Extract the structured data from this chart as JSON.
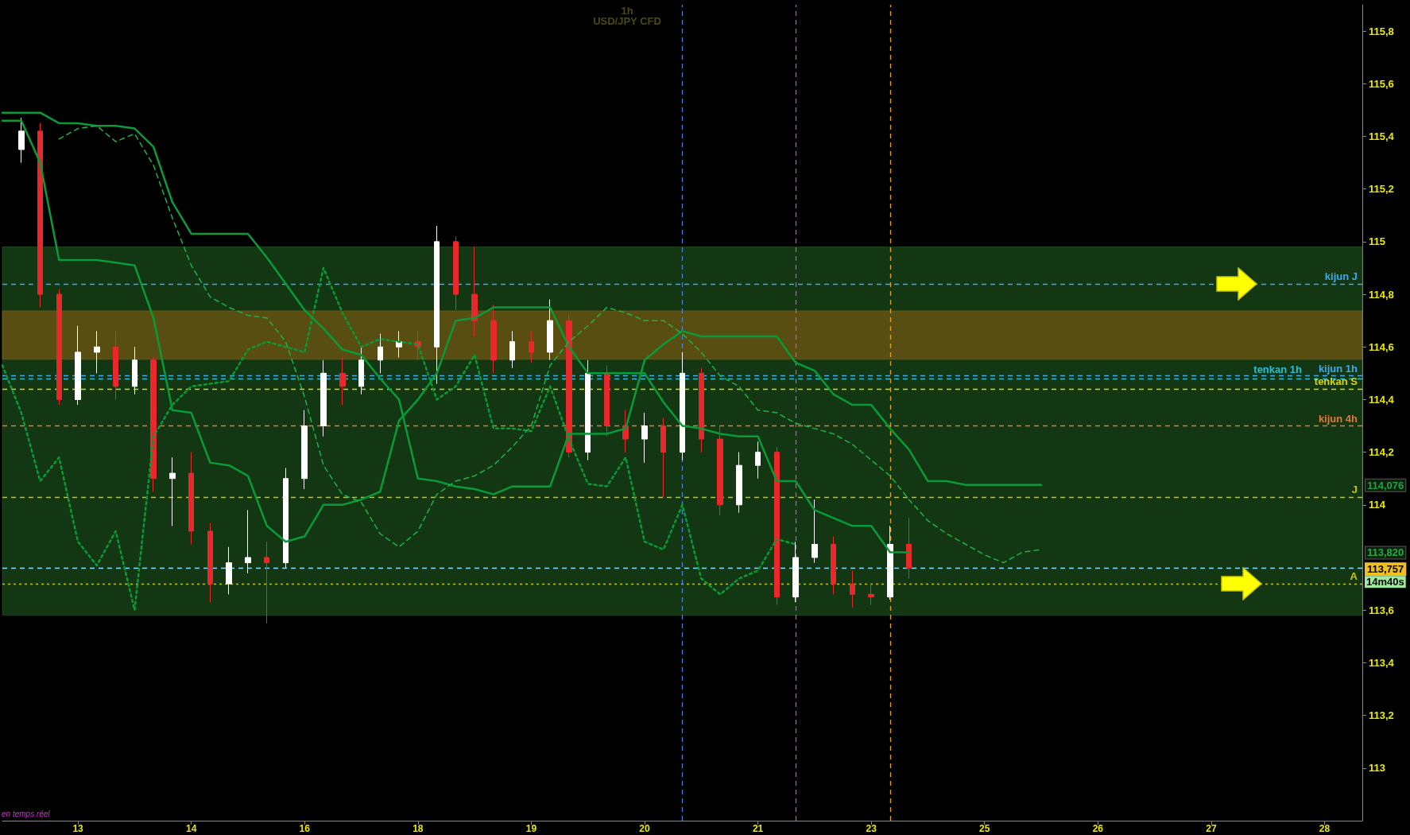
{
  "chart_data": {
    "type": "candlestick",
    "title": "1h",
    "subtitle": "USD/JPY CFD",
    "categories": [
      null,
      null,
      null,
      null,
      "13",
      null,
      null,
      null,
      null,
      null,
      "14",
      null,
      null,
      null,
      null,
      null,
      "16",
      null,
      null,
      null,
      null,
      null,
      "18",
      null,
      null,
      null,
      null,
      null,
      "19",
      null,
      null,
      null,
      null,
      null,
      "20",
      null,
      null,
      null,
      null,
      null,
      "21",
      null,
      null,
      null,
      null,
      null,
      "23",
      null,
      null,
      null,
      null,
      null,
      "25",
      null,
      null,
      null,
      null,
      null,
      "26",
      null,
      null,
      null,
      null,
      null,
      "27",
      null,
      null,
      null,
      null,
      null,
      "28",
      null,
      null
    ],
    "ylim": [
      112.8,
      115.9
    ],
    "yticks": [
      113,
      {
        "value": 113.2,
        "label": "113,2"
      },
      {
        "value": 113.4,
        "label": "113,4"
      },
      {
        "value": 113.6,
        "label": "113,6"
      },
      114,
      {
        "value": 114.2,
        "label": "114,2"
      },
      {
        "value": 114.4,
        "label": "114,4"
      },
      {
        "value": 114.6,
        "label": "114,6"
      },
      {
        "value": 114.8,
        "label": "114,8"
      },
      115,
      {
        "value": 115.2,
        "label": "115,2"
      },
      {
        "value": 115.4,
        "label": "115,4"
      },
      {
        "value": 115.6,
        "label": "115,6"
      },
      {
        "value": 115.8,
        "label": "115,8"
      }
    ],
    "grid": false,
    "series": [
      {
        "colors": [
          null,
          "#ffffff",
          "#e8282b",
          "#e8282b",
          "#ffffff",
          "#ffffff",
          "#e8282b",
          "#ffffff",
          "#e8282b",
          "#ffffff",
          "#e8282b",
          "#e8282b",
          "#ffffff",
          "#ffffff",
          "#e8282b",
          "#ffffff",
          "#ffffff",
          "#ffffff",
          "#e8282b",
          "#ffffff",
          "#ffffff",
          "#ffffff",
          "#e8282b",
          "#ffffff",
          "#e8282b",
          "#e8282b",
          "#e8282b",
          "#ffffff",
          "#e8282b",
          "#ffffff",
          "#e8282b",
          "#ffffff",
          "#e8282b",
          "#e8282b",
          "#ffffff",
          "#e8282b",
          "#ffffff",
          "#e8282b",
          "#e8282b",
          "#ffffff",
          "#ffffff",
          "#e8282b",
          "#ffffff",
          "#ffffff",
          "#e8282b",
          "#e8282b",
          "#e8282b",
          "#ffffff",
          "#e8282b",
          null,
          null,
          null,
          null,
          null,
          null,
          null,
          null,
          null,
          null,
          null,
          null,
          null,
          null,
          null,
          null,
          null,
          null,
          null,
          null,
          null,
          null,
          null,
          null
        ],
        "ohlc": [
          null,
          [
            115.35,
            115.47,
            115.3,
            115.42
          ],
          [
            115.42,
            115.45,
            114.75,
            114.8
          ],
          [
            114.8,
            114.82,
            114.38,
            114.4
          ],
          [
            114.4,
            114.68,
            114.38,
            114.58
          ],
          [
            114.58,
            114.66,
            114.5,
            114.6
          ],
          [
            114.6,
            114.66,
            114.4,
            114.45
          ],
          [
            114.45,
            114.6,
            114.42,
            114.55
          ],
          [
            114.55,
            114.56,
            114.05,
            114.1
          ],
          [
            114.1,
            114.18,
            113.92,
            114.12
          ],
          [
            114.12,
            114.2,
            113.85,
            113.9
          ],
          [
            113.9,
            113.93,
            113.63,
            113.7
          ],
          [
            113.7,
            113.84,
            113.66,
            113.78
          ],
          [
            113.78,
            113.98,
            113.74,
            113.8
          ],
          [
            113.8,
            113.86,
            113.55,
            113.78
          ],
          [
            113.78,
            114.14,
            113.76,
            114.1
          ],
          [
            114.1,
            114.36,
            114.06,
            114.3
          ],
          [
            114.3,
            114.55,
            114.26,
            114.5
          ],
          [
            114.5,
            114.56,
            114.38,
            114.45
          ],
          [
            114.45,
            114.6,
            114.42,
            114.55
          ],
          [
            114.55,
            114.65,
            114.5,
            114.6
          ],
          [
            114.6,
            114.66,
            114.56,
            114.62
          ],
          [
            114.62,
            114.66,
            114.55,
            114.6
          ],
          [
            114.6,
            115.06,
            114.46,
            115.0
          ],
          [
            115.0,
            115.02,
            114.74,
            114.8
          ],
          [
            114.8,
            114.98,
            114.64,
            114.7
          ],
          [
            114.7,
            114.76,
            114.5,
            114.55
          ],
          [
            114.55,
            114.66,
            114.52,
            114.62
          ],
          [
            114.62,
            114.66,
            114.54,
            114.58
          ],
          [
            114.58,
            114.78,
            114.55,
            114.7
          ],
          [
            114.7,
            114.72,
            114.18,
            114.2
          ],
          [
            114.2,
            114.55,
            114.17,
            114.5
          ],
          [
            114.5,
            114.53,
            114.26,
            114.3
          ],
          [
            114.3,
            114.36,
            114.2,
            114.25
          ],
          [
            114.25,
            114.35,
            114.16,
            114.3
          ],
          [
            114.3,
            114.33,
            114.03,
            114.2
          ],
          [
            114.2,
            114.58,
            114.17,
            114.5
          ],
          [
            114.5,
            114.52,
            114.2,
            114.25
          ],
          [
            114.25,
            114.3,
            113.96,
            114.0
          ],
          [
            114.0,
            114.2,
            113.97,
            114.15
          ],
          [
            114.15,
            114.24,
            114.1,
            114.2
          ],
          [
            114.2,
            114.22,
            113.62,
            113.65
          ],
          [
            113.65,
            113.86,
            113.63,
            113.8
          ],
          [
            113.8,
            114.02,
            113.78,
            113.85
          ],
          [
            113.85,
            113.88,
            113.66,
            113.7
          ],
          [
            113.7,
            113.75,
            113.61,
            113.66
          ],
          [
            113.66,
            113.7,
            113.62,
            113.65
          ],
          [
            113.65,
            113.92,
            113.64,
            113.85
          ],
          [
            113.85,
            113.95,
            113.72,
            113.76
          ],
          null,
          null,
          null,
          null,
          null,
          null,
          null,
          null,
          null,
          null,
          null,
          null,
          null,
          null,
          null,
          null,
          null,
          null,
          null,
          null,
          null,
          null,
          null,
          null
        ]
      },
      {
        "type": "line",
        "color": "#0a9a3a",
        "line_style": "solid",
        "values": [
          115.49,
          115.49,
          115.49,
          115.45,
          115.45,
          115.44,
          115.44,
          115.43,
          115.36,
          115.15,
          115.03,
          115.03,
          115.03,
          115.03,
          114.94,
          114.84,
          114.74,
          114.67,
          114.59,
          114.57,
          114.48,
          114.4,
          114.1,
          114.09,
          114.07,
          114.06,
          114.04,
          114.07,
          114.07,
          114.07,
          114.27,
          114.27,
          114.27,
          114.29,
          114.55,
          114.61,
          114.66,
          114.64,
          114.64,
          114.64,
          114.64,
          114.64,
          114.54,
          114.51,
          114.42,
          114.38,
          114.38,
          114.29,
          114.21,
          114.09,
          114.09,
          114.076,
          114.076,
          114.076,
          114.076,
          114.076,
          null,
          null,
          null,
          null,
          null,
          null,
          null,
          null,
          null,
          null,
          null,
          null,
          null,
          null,
          null,
          null,
          null
        ]
      },
      {
        "type": "line",
        "color": "#0a9a3a",
        "line_style": "solid",
        "values": [
          115.46,
          115.46,
          115.3,
          114.93,
          114.93,
          114.93,
          114.92,
          114.91,
          114.71,
          114.36,
          114.35,
          114.16,
          114.15,
          114.11,
          113.92,
          113.86,
          113.88,
          114.0,
          114.0,
          114.02,
          114.05,
          114.32,
          114.4,
          114.5,
          114.7,
          114.71,
          114.75,
          114.75,
          114.75,
          114.75,
          114.6,
          114.5,
          114.5,
          114.5,
          114.5,
          114.39,
          114.3,
          114.29,
          114.27,
          114.26,
          114.26,
          114.09,
          114.09,
          113.98,
          113.95,
          113.92,
          113.92,
          113.82,
          113.82,
          null,
          null,
          null,
          null,
          null,
          null,
          null,
          null,
          null,
          null,
          null,
          null,
          null,
          null,
          null,
          null,
          null,
          null,
          null,
          null,
          null,
          null,
          null,
          null
        ]
      },
      {
        "type": "line",
        "color": "#0a9a3a",
        "line_style": "dotted",
        "values": [
          114.53,
          114.35,
          114.09,
          114.18,
          113.86,
          113.77,
          113.9,
          113.6,
          114.26,
          114.38,
          114.45,
          114.46,
          114.47,
          114.59,
          114.62,
          114.6,
          114.58,
          114.9,
          114.73,
          114.6,
          114.63,
          114.62,
          114.61,
          114.4,
          114.45,
          114.57,
          114.29,
          114.29,
          114.28,
          114.45,
          114.25,
          114.08,
          114.07,
          114.18,
          113.86,
          113.83,
          114.0,
          113.72,
          113.66,
          113.72,
          113.75,
          113.87,
          113.85,
          null,
          null,
          null,
          null,
          null,
          null,
          null,
          null,
          null,
          null,
          null,
          null,
          null,
          null,
          null,
          null,
          null,
          null,
          null,
          null,
          null,
          null,
          null,
          null,
          null,
          null,
          null,
          null,
          null,
          null
        ]
      },
      {
        "type": "line",
        "color": "#22b04a",
        "line_style": "dashed",
        "values": [
          null,
          null,
          null,
          115.39,
          115.43,
          115.44,
          115.38,
          115.41,
          115.29,
          115.09,
          114.91,
          114.79,
          114.75,
          114.72,
          114.71,
          114.62,
          114.41,
          114.15,
          114.04,
          114.01,
          113.89,
          113.84,
          113.9,
          114.04,
          114.09,
          114.11,
          114.15,
          114.22,
          114.3,
          114.53,
          114.62,
          114.68,
          114.75,
          114.73,
          114.7,
          114.7,
          114.65,
          114.58,
          114.49,
          114.45,
          114.36,
          114.35,
          114.31,
          114.29,
          114.27,
          114.23,
          114.17,
          114.11,
          114.02,
          113.94,
          113.89,
          113.85,
          113.81,
          113.78,
          113.82,
          113.83,
          null,
          null,
          null,
          null,
          null,
          null,
          null,
          null,
          null,
          null,
          null,
          null,
          null,
          null,
          null,
          null,
          null
        ]
      }
    ],
    "bands": [
      {
        "axis": "y",
        "from": 113.58,
        "to": 114.98,
        "color": "#2a7a2a"
      },
      {
        "axis": "y",
        "from": 114.553,
        "to": 114.737,
        "color": "#b06a10"
      }
    ],
    "ref_lines": [
      {
        "axis": "y",
        "value": 114.84,
        "label": "kijun J",
        "color": "#3fa9f5",
        "line_style": "dashed"
      },
      {
        "axis": "y",
        "value": 114.49,
        "label": "kijun 1h",
        "color": "#3fa9f5",
        "line_style": "dashed"
      },
      {
        "axis": "y",
        "value": 114.485,
        "label": "tenkan 1h",
        "color": "#26c0d8",
        "line_style": "dashed"
      },
      {
        "axis": "y",
        "value": 114.44,
        "label": "tenkan S",
        "color": "#d8d800",
        "line_style": "dashed"
      },
      {
        "axis": "y",
        "value": 114.3,
        "label": "kijun 4h",
        "color": "#e07a3a",
        "line_style": "dashed"
      },
      {
        "axis": "y",
        "value": 114.03,
        "label": "J",
        "color": "#c8c800",
        "line_style": "dashed"
      },
      {
        "axis": "y",
        "value": 113.757,
        "color": "#7fe0ff",
        "line_style": "dashed"
      },
      {
        "axis": "y",
        "value": 113.7,
        "label": "A",
        "color": "#c8c800",
        "line_style": "dotted"
      }
    ],
    "annotations": [
      "en temps réel",
      "114,076",
      "113,820",
      "113,757",
      "14m40s"
    ]
  }
}
